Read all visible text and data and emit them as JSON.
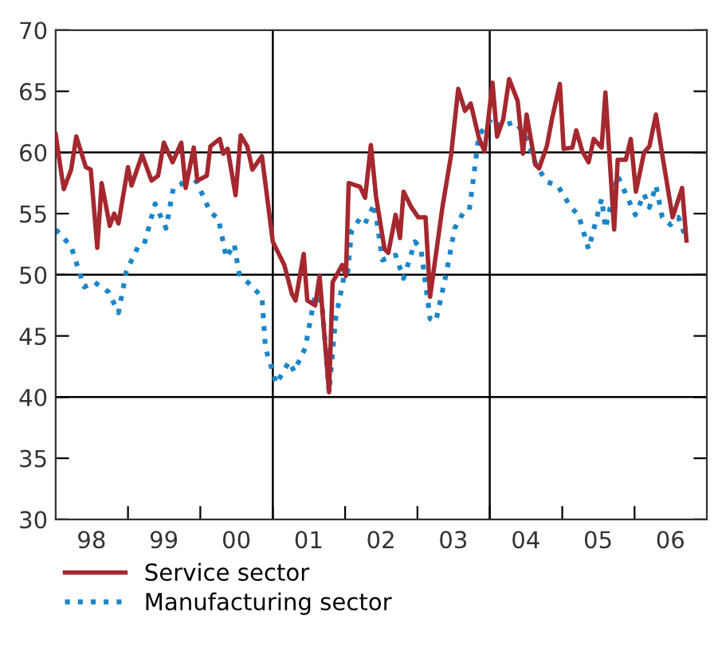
{
  "chart_data": {
    "type": "line",
    "xlim": [
      "1998-01-01",
      "2007-01-01"
    ],
    "ylim": [
      30,
      70
    ],
    "xticks": [
      {
        "value": "1998-07-01",
        "label": "98"
      },
      {
        "value": "1999-07-01",
        "label": "99"
      },
      {
        "value": "2000-07-01",
        "label": "00"
      },
      {
        "value": "2001-07-01",
        "label": "01"
      },
      {
        "value": "2002-07-01",
        "label": "02"
      },
      {
        "value": "2003-07-01",
        "label": "03"
      },
      {
        "value": "2004-07-01",
        "label": "04"
      },
      {
        "value": "2005-07-01",
        "label": "05"
      },
      {
        "value": "2006-07-01",
        "label": "06"
      },
      {
        "value": "1999-01-01",
        "label": null
      },
      {
        "value": "2000-01-01",
        "label": null
      },
      {
        "value": "2001-01-01",
        "label": null
      },
      {
        "value": "2002-01-01",
        "label": null
      },
      {
        "value": "2003-01-01",
        "label": null
      },
      {
        "value": "2004-01-01",
        "label": null
      },
      {
        "value": "2005-01-01",
        "label": null
      },
      {
        "value": "2006-01-01",
        "label": null
      }
    ],
    "yticks": [
      30,
      35,
      40,
      45,
      50,
      55,
      60,
      65,
      70
    ],
    "grid": false,
    "legend": "bottom",
    "marker": "none",
    "ref_lines": [
      {
        "axis": "y",
        "value": 40,
        "color": "#000000"
      },
      {
        "axis": "y",
        "value": 50,
        "color": "#000000"
      },
      {
        "axis": "y",
        "value": 60,
        "color": "#000000"
      },
      {
        "axis": "x",
        "value": "2001-01-01",
        "color": "#000000"
      },
      {
        "axis": "x",
        "value": "2004-01-01",
        "color": "#000000"
      }
    ],
    "series": [
      {
        "name": "Service sector",
        "color": "#a4282e",
        "line_style": "solid",
        "x": [
          "1998-01-01",
          "1998-01-23",
          "1998-02-11",
          "1998-03-20",
          "1998-04-15",
          "1998-06-02",
          "1998-06-27",
          "1998-07-30",
          "1998-08-21",
          "1998-10-01",
          "1998-10-23",
          "1998-11-14",
          "1999-01-01",
          "1999-01-19",
          "1999-03-13",
          "1999-04-30",
          "1999-06-02",
          "1999-07-01",
          "1999-08-14",
          "1999-09-27",
          "1999-10-19",
          "1999-11-29",
          "1999-12-17",
          "2000-02-03",
          "2000-02-21",
          "2000-04-08",
          "2000-04-26",
          "2000-05-18",
          "2000-06-27",
          "2000-07-23",
          "2000-08-25",
          "2000-09-20",
          "2000-11-07",
          "2001-01-01",
          "2001-02-28",
          "2001-04-08",
          "2001-04-26",
          "2001-06-06",
          "2001-06-24",
          "2001-08-03",
          "2001-08-25",
          "2001-10-12",
          "2001-10-30",
          "2001-12-17",
          "2002-01-05",
          "2002-01-19",
          "2002-03-17",
          "2002-04-12",
          "2002-05-11",
          "2002-06-06",
          "2002-07-19",
          "2002-08-07",
          "2002-09-13",
          "2002-10-05",
          "2002-10-23",
          "2002-12-02",
          "2003-01-05",
          "2003-02-11",
          "2003-03-06",
          "2003-05-07",
          "2003-06-20",
          "2003-07-26",
          "2003-08-29",
          "2003-09-27",
          "2003-11-07",
          "2003-12-06",
          "2004-01-15",
          "2004-02-07",
          "2004-03-09",
          "2004-04-08",
          "2004-05-21",
          "2004-06-17",
          "2004-07-05",
          "2004-08-18",
          "2004-09-06",
          "2004-10-15",
          "2004-11-11",
          "2004-12-20",
          "2005-01-08",
          "2005-02-21",
          "2005-03-13",
          "2005-04-12",
          "2005-05-14",
          "2005-06-09",
          "2005-07-19",
          "2005-08-07",
          "2005-09-20",
          "2005-10-08",
          "2005-11-18",
          "2005-12-13",
          "2006-01-08",
          "2006-02-18",
          "2006-03-17",
          "2006-04-19",
          "2006-05-21",
          "2006-07-12",
          "2006-08-29",
          "2006-09-20"
        ],
        "values": [
          61.5,
          59.0,
          57.0,
          58.6,
          61.3,
          58.8,
          58.6,
          52.2,
          57.5,
          54.0,
          55.0,
          54.2,
          58.8,
          57.3,
          59.8,
          57.7,
          58.1,
          60.8,
          59.2,
          60.8,
          57.1,
          60.4,
          57.7,
          58.1,
          60.5,
          61.1,
          59.9,
          60.3,
          56.5,
          61.4,
          60.5,
          58.6,
          59.7,
          52.7,
          50.8,
          48.4,
          47.9,
          51.7,
          47.9,
          47.5,
          49.9,
          40.4,
          49.4,
          50.8,
          49.9,
          57.5,
          57.2,
          56.3,
          60.6,
          56.4,
          52.1,
          51.8,
          54.9,
          53.0,
          56.8,
          55.5,
          54.7,
          54.7,
          48.2,
          55.5,
          59.8,
          65.2,
          63.4,
          64.0,
          61.2,
          60.1,
          65.7,
          61.3,
          62.7,
          66.0,
          64.2,
          59.9,
          63.1,
          59.0,
          58.7,
          60.5,
          62.8,
          65.6,
          60.3,
          60.4,
          61.8,
          60.1,
          59.2,
          61.1,
          60.4,
          64.9,
          53.7,
          59.4,
          59.4,
          61.1,
          56.8,
          60.0,
          60.5,
          63.1,
          59.8,
          54.7,
          57.1,
          52.8
        ]
      },
      {
        "name": "Manufacturing sector",
        "color": "#1a86c8",
        "line_style": "dotted",
        "x": [
          "1998-01-01",
          "1998-02-11",
          "1998-03-20",
          "1998-05-25",
          "1998-07-15",
          "1998-09-24",
          "1998-11-14",
          "1998-12-24",
          "1999-02-21",
          "1999-03-24",
          "1999-05-18",
          "1999-07-12",
          "1999-08-18",
          "1999-09-27",
          "1999-11-03",
          "1999-12-17",
          "2000-02-21",
          "2000-04-01",
          "2000-05-11",
          "2000-06-20",
          "2000-07-15",
          "2000-09-20",
          "2000-11-07",
          "2000-11-25",
          "2001-01-19",
          "2001-03-24",
          "2001-04-19",
          "2001-06-13",
          "2001-08-03",
          "2001-09-06",
          "2001-10-12",
          "2001-11-14",
          "2001-12-27",
          "2002-01-12",
          "2002-02-03",
          "2002-03-17",
          "2002-04-12",
          "2002-05-29",
          "2002-07-08",
          "2002-09-13",
          "2002-10-23",
          "2002-12-20",
          "2003-01-19",
          "2003-03-06",
          "2003-04-04",
          "2003-05-29",
          "2003-07-08",
          "2003-08-21",
          "2003-09-20",
          "2003-11-07",
          "2004-01-12",
          "2004-02-21",
          "2004-05-07",
          "2004-07-01",
          "2004-08-21",
          "2004-10-15",
          "2004-12-09",
          "2005-02-14",
          "2005-03-24",
          "2005-05-14",
          "2005-07-19",
          "2005-08-07",
          "2005-10-08",
          "2005-11-18",
          "2006-01-05",
          "2006-02-18",
          "2006-03-17",
          "2006-04-19",
          "2006-05-21",
          "2006-07-01",
          "2006-08-10",
          "2006-09-20"
        ],
        "values": [
          53.7,
          53.0,
          52.3,
          49.0,
          49.4,
          48.6,
          46.9,
          50.3,
          52.3,
          52.5,
          55.8,
          53.8,
          57.1,
          57.4,
          58.4,
          57.5,
          55.1,
          54.6,
          51.4,
          52.5,
          50.1,
          49.0,
          48.2,
          44.0,
          41.1,
          42.9,
          42.1,
          44.0,
          48.4,
          47.7,
          40.4,
          46.4,
          49.9,
          49.9,
          53.6,
          54.6,
          54.2,
          55.8,
          51.2,
          51.6,
          49.7,
          52.7,
          52.1,
          46.4,
          46.2,
          50.3,
          53.8,
          55.1,
          55.3,
          61.4,
          62.8,
          62.1,
          62.5,
          61.4,
          59.0,
          57.6,
          57.3,
          55.5,
          54.9,
          52.1,
          56.2,
          53.8,
          58.1,
          56.6,
          54.9,
          56.6,
          55.5,
          57.3,
          54.7,
          54.1,
          54.7,
          52.9
        ]
      }
    ]
  }
}
